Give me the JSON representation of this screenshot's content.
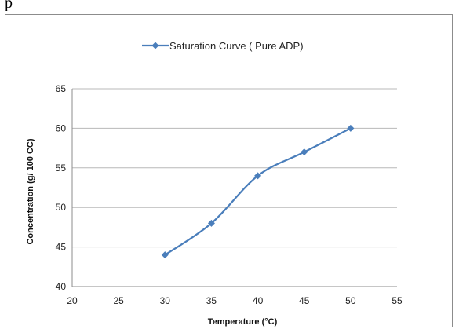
{
  "page_text": "p",
  "chart_data": {
    "type": "line",
    "legend": {
      "label": "Saturation Curve ( Pure ADP)",
      "position": "top"
    },
    "series": [
      {
        "name": "Saturation Curve ( Pure ADP)",
        "color": "#4a7ebb",
        "marker": "diamond",
        "x": [
          30,
          35,
          40,
          45,
          50
        ],
        "y": [
          44,
          48,
          54,
          57,
          60
        ]
      }
    ],
    "xlabel": "Temperature (°C)",
    "ylabel": "Concentration (g/ 100 CC)",
    "xlim": [
      20,
      55
    ],
    "ylim": [
      40,
      65
    ],
    "xticks": [
      20,
      25,
      30,
      35,
      40,
      45,
      50,
      55
    ],
    "yticks": [
      40,
      45,
      50,
      55,
      60,
      65
    ],
    "grid": "horizontal"
  }
}
